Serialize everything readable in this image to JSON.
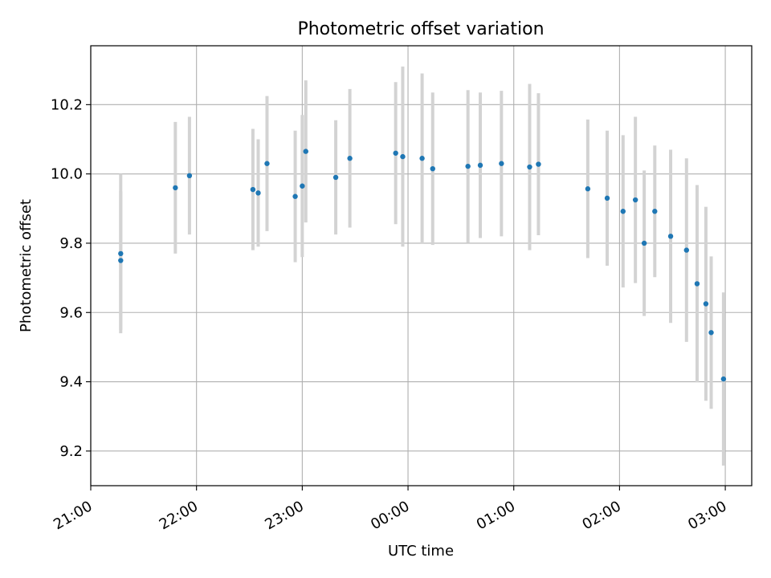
{
  "chart_data": {
    "type": "scatter",
    "title": "Photometric offset variation",
    "xlabel": "UTC time",
    "ylabel": "Photometric offset",
    "x_axis": "time",
    "x_time_range": [
      "21:00",
      "03:15"
    ],
    "ylim": [
      9.1,
      10.37
    ],
    "x_ticks": [
      "21:00",
      "22:00",
      "23:00",
      "00:00",
      "01:00",
      "02:00",
      "03:00"
    ],
    "y_ticks": [
      "9.2",
      "9.4",
      "9.6",
      "9.8",
      "10.0",
      "10.2"
    ],
    "grid": true,
    "colors": {
      "points": "#1f77b4",
      "errorbars": "#d3d3d3",
      "grid": "#b0b0b0"
    },
    "series": [
      {
        "points": [
          {
            "time": "21:17",
            "y": 9.75,
            "yerr": 0.2
          },
          {
            "time": "21:17",
            "y": 9.77,
            "yerr": 0.23
          },
          {
            "time": "21:48",
            "y": 9.96,
            "yerr": 0.19
          },
          {
            "time": "21:56",
            "y": 9.995,
            "yerr": 0.17
          },
          {
            "time": "22:32",
            "y": 9.955,
            "yerr": 0.175
          },
          {
            "time": "22:35",
            "y": 9.945,
            "yerr": 0.155
          },
          {
            "time": "22:40",
            "y": 10.03,
            "yerr": 0.195
          },
          {
            "time": "22:56",
            "y": 9.935,
            "yerr": 0.19
          },
          {
            "time": "23:00",
            "y": 9.965,
            "yerr": 0.205
          },
          {
            "time": "23:02",
            "y": 10.065,
            "yerr": 0.205
          },
          {
            "time": "23:19",
            "y": 9.99,
            "yerr": 0.165
          },
          {
            "time": "23:27",
            "y": 10.045,
            "yerr": 0.2
          },
          {
            "time": "23:53",
            "y": 10.06,
            "yerr": 0.205
          },
          {
            "time": "23:57",
            "y": 10.05,
            "yerr": 0.26
          },
          {
            "time": "00:08",
            "y": 10.045,
            "yerr": 0.245
          },
          {
            "time": "00:14",
            "y": 10.015,
            "yerr": 0.22
          },
          {
            "time": "00:34",
            "y": 10.022,
            "yerr": 0.22
          },
          {
            "time": "00:41",
            "y": 10.025,
            "yerr": 0.21
          },
          {
            "time": "00:53",
            "y": 10.03,
            "yerr": 0.21
          },
          {
            "time": "01:09",
            "y": 10.02,
            "yerr": 0.24
          },
          {
            "time": "01:14",
            "y": 10.028,
            "yerr": 0.205
          },
          {
            "time": "01:42",
            "y": 9.957,
            "yerr": 0.2
          },
          {
            "time": "01:53",
            "y": 9.93,
            "yerr": 0.195
          },
          {
            "time": "02:02",
            "y": 9.892,
            "yerr": 0.22
          },
          {
            "time": "02:09",
            "y": 9.925,
            "yerr": 0.24
          },
          {
            "time": "02:14",
            "y": 9.8,
            "yerr": 0.21
          },
          {
            "time": "02:20",
            "y": 9.892,
            "yerr": 0.19
          },
          {
            "time": "02:29",
            "y": 9.82,
            "yerr": 0.25
          },
          {
            "time": "02:38",
            "y": 9.78,
            "yerr": 0.265
          },
          {
            "time": "02:44",
            "y": 9.683,
            "yerr": 0.285
          },
          {
            "time": "02:49",
            "y": 9.625,
            "yerr": 0.28
          },
          {
            "time": "02:52",
            "y": 9.542,
            "yerr": 0.22
          },
          {
            "time": "02:59",
            "y": 9.408,
            "yerr": 0.25
          }
        ]
      }
    ]
  }
}
